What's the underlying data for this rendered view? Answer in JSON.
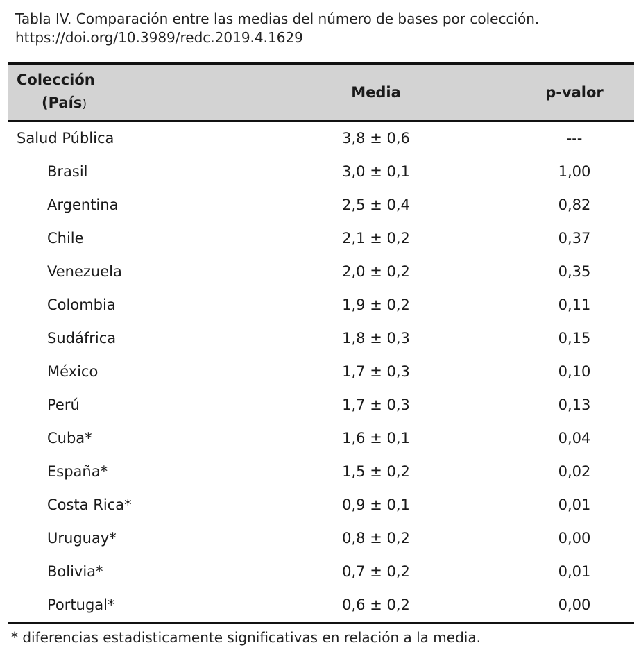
{
  "caption": {
    "line1": "Tabla IV. Comparación entre las medias del número de bases por colección.",
    "line2": "https://doi.org/10.3989/redc.2019.4.1629"
  },
  "table": {
    "headers": {
      "col1_line1": "Colección",
      "col1_line2_open": "(",
      "col1_line2_word": "País",
      "col1_line2_close": ")",
      "col2": "Media",
      "col3": "p-valor"
    },
    "rows": [
      {
        "name": "Salud Pública",
        "media": "3,8 ± 0,6",
        "pvalor": "---"
      },
      {
        "name": "Brasil",
        "media": "3,0 ± 0,1",
        "pvalor": "1,00"
      },
      {
        "name": "Argentina",
        "media": "2,5 ± 0,4",
        "pvalor": "0,82"
      },
      {
        "name": "Chile",
        "media": "2,1 ± 0,2",
        "pvalor": "0,37"
      },
      {
        "name": "Venezuela",
        "media": "2,0 ± 0,2",
        "pvalor": "0,35"
      },
      {
        "name": "Colombia",
        "media": "1,9 ± 0,2",
        "pvalor": "0,11"
      },
      {
        "name": "Sudáfrica",
        "media": "1,8 ± 0,3",
        "pvalor": "0,15"
      },
      {
        "name": "México",
        "media": "1,7 ± 0,3",
        "pvalor": "0,10"
      },
      {
        "name": "Perú",
        "media": "1,7 ± 0,3",
        "pvalor": "0,13"
      },
      {
        "name": "Cuba*",
        "media": "1,6 ± 0,1",
        "pvalor": "0,04"
      },
      {
        "name": "España*",
        "media": "1,5 ± 0,2",
        "pvalor": "0,02"
      },
      {
        "name": "Costa Rica*",
        "media": "0,9 ± 0,1",
        "pvalor": "0,01"
      },
      {
        "name": "Uruguay*",
        "media": "0,8 ± 0,2",
        "pvalor": "0,00"
      },
      {
        "name": "Bolivia*",
        "media": "0,7 ± 0,2",
        "pvalor": "0,01"
      },
      {
        "name": "Portugal*",
        "media": "0,6 ± 0,2",
        "pvalor": "0,00"
      }
    ]
  },
  "footnote": "* diferencias estadisticamente significativas en relación a la media."
}
